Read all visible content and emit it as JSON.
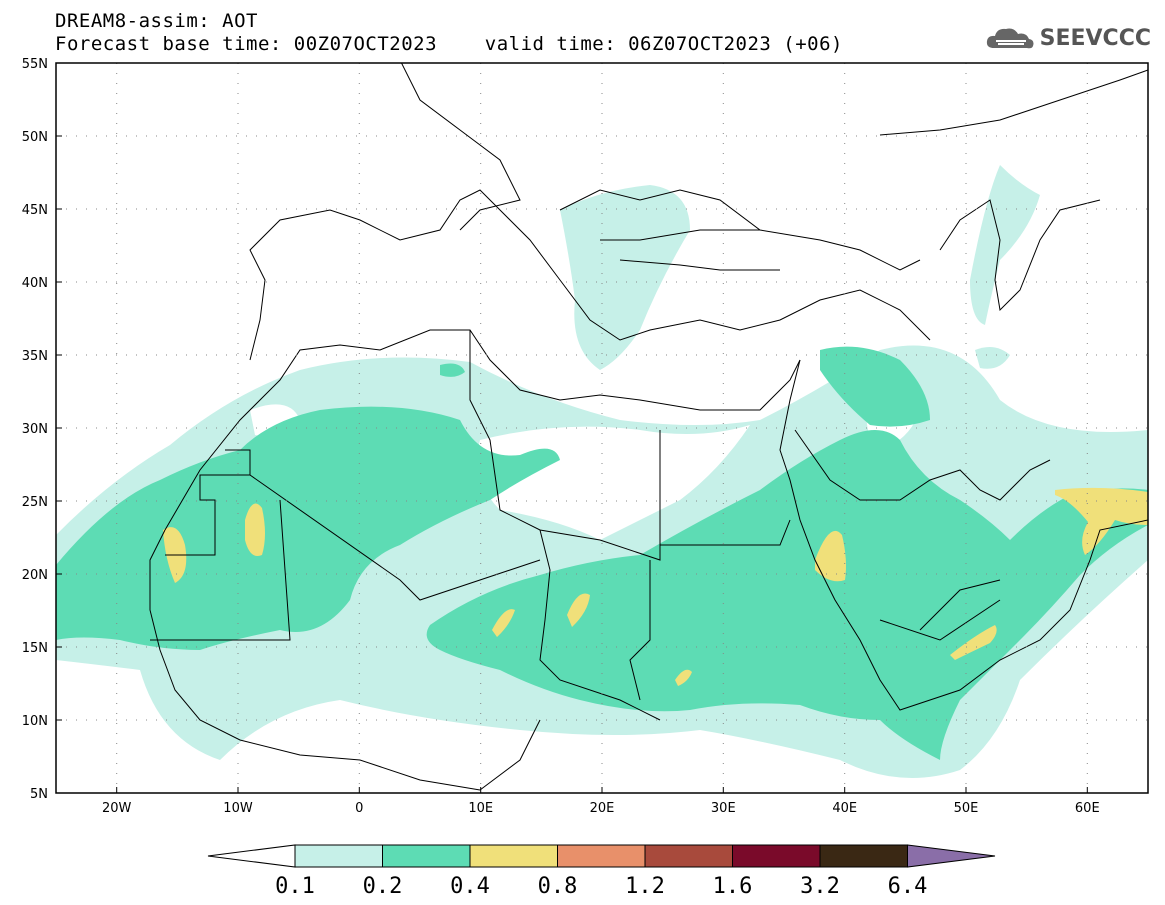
{
  "title": {
    "line1": "DREAM8-assim: AOT",
    "line2": "Forecast base time: 00Z07OCT2023    valid time: 06Z07OCT2023 (+06)"
  },
  "logo": {
    "text": "SEEVCCC",
    "icon": "cloud-icon"
  },
  "map": {
    "lat_labels": [
      "55N",
      "50N",
      "45N",
      "40N",
      "35N",
      "30N",
      "25N",
      "20N",
      "15N",
      "10N",
      "5N"
    ],
    "lon_labels": [
      "20W",
      "10W",
      "0",
      "10E",
      "20E",
      "30E",
      "40E",
      "50E",
      "60E"
    ],
    "lon_range": [
      -25,
      65
    ],
    "lat_range": [
      5,
      55
    ]
  },
  "legend": {
    "labels": [
      "0.1",
      "0.2",
      "0.4",
      "0.8",
      "1.2",
      "1.6",
      "3.2",
      "6.4"
    ],
    "colors": {
      "below": "#ffffff",
      "c1": "#c6f0e8",
      "c2": "#5ddcb4",
      "c3": "#f0e07a",
      "c4": "#e8906a",
      "c5": "#a84a3c",
      "c6": "#7a0a2a",
      "c7": "#3a2814",
      "above": "#8a6ea8"
    }
  }
}
